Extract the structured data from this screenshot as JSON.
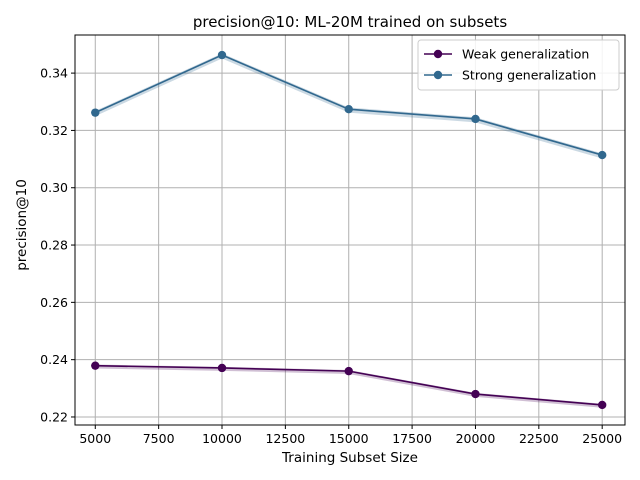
{
  "chart_data": {
    "type": "line",
    "title": "precision@10: ML-20M trained on subsets",
    "xlabel": "Training Subset Size",
    "ylabel": "precision@10",
    "xlim": [
      4200,
      25900
    ],
    "ylim": [
      0.2172,
      0.3533
    ],
    "x_ticks": [
      5000,
      7500,
      10000,
      12500,
      15000,
      17500,
      20000,
      22500,
      25000
    ],
    "y_ticks": [
      0.22,
      0.24,
      0.26,
      0.28,
      0.3,
      0.32,
      0.34
    ],
    "grid": true,
    "legend_position": "top-right",
    "x": [
      5000,
      10000,
      15000,
      20000,
      25000
    ],
    "series": [
      {
        "name": "Weak generalization",
        "color": "#440154",
        "values": [
          0.2379,
          0.2371,
          0.236,
          0.228,
          0.2242
        ],
        "band_halfwidth": 0.0004
      },
      {
        "name": "Strong generalization",
        "color": "#31688e",
        "values": [
          0.3262,
          0.3463,
          0.3274,
          0.324,
          0.3114
        ],
        "band_halfwidth": 0.0006
      }
    ]
  }
}
